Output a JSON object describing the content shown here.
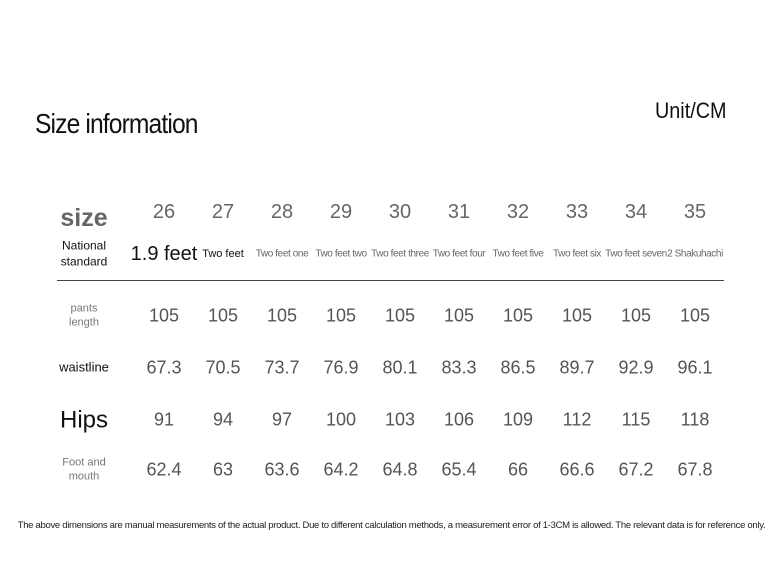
{
  "title": "Size information",
  "unit": "Unit/CM",
  "table": {
    "rows": [
      [
        "size",
        26,
        27,
        28,
        29,
        30,
        31,
        32,
        33,
        34,
        35
      ],
      [
        "National standard",
        "1.9 feet",
        "Two feet",
        "Two feet one",
        "Two feet two",
        "Two feet three",
        "Two feet four",
        "Two feet five",
        "Two feet six",
        "Two feet seven",
        "2 Shakuhachi"
      ],
      [
        "pants length",
        105,
        105,
        105,
        105,
        105,
        105,
        105,
        105,
        105,
        105
      ],
      [
        "waistline",
        67.3,
        70.5,
        73.7,
        76.9,
        80.1,
        83.3,
        86.5,
        89.7,
        92.9,
        96.1
      ],
      [
        "Hips",
        91,
        94,
        97,
        100,
        103,
        106,
        109,
        112,
        115,
        118
      ],
      [
        "Foot and mouth",
        62.4,
        63,
        63.6,
        64.2,
        64.8,
        65.4,
        66,
        66.6,
        67.2,
        67.8
      ]
    ]
  },
  "note": "The above dimensions are manual measurements of the actual product. Due to different calculation methods, a measurement error of 1-3CM is allowed. The relevant data is for reference only."
}
